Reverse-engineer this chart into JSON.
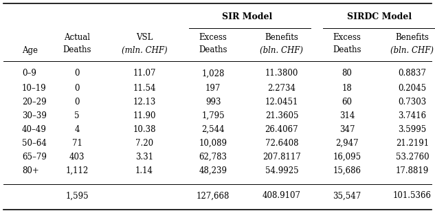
{
  "title_left": "SIR Model",
  "title_right": "SIRDC Model",
  "headers_row1": [
    "",
    "Actual",
    "VSL",
    "Excess",
    "Benefits",
    "Excess",
    "Benefits"
  ],
  "headers_row2": [
    "Age",
    "Deaths",
    "(mln. CHF)",
    "Deaths",
    "(bln. CHF)",
    "Deaths",
    "(bln. CHF)"
  ],
  "rows": [
    [
      "0–9",
      "0",
      "11.07",
      "1,028",
      "11.3800",
      "80",
      "0.8837"
    ],
    [
      "10–19",
      "0",
      "11.54",
      "197",
      "2.2734",
      "18",
      "0.2045"
    ],
    [
      "20–29",
      "0",
      "12.13",
      "993",
      "12.0451",
      "60",
      "0.7303"
    ],
    [
      "30–39",
      "5",
      "11.90",
      "1,795",
      "21.3605",
      "314",
      "3.7416"
    ],
    [
      "40–49",
      "4",
      "10.38",
      "2,544",
      "26.4067",
      "347",
      "3.5995"
    ],
    [
      "50–64",
      "71",
      "7.20",
      "10,089",
      "72.6408",
      "2,947",
      "21.2191"
    ],
    [
      "65–79",
      "403",
      "3.31",
      "62,783",
      "207.8117",
      "16,095",
      "53.2760"
    ],
    [
      "80+",
      "1,112",
      "1.14",
      "48,239",
      "54.9925",
      "15,686",
      "17.8819"
    ]
  ],
  "total_row": [
    "",
    "1,595",
    "",
    "127,668",
    "408.9107",
    "35,547",
    "101.5366"
  ],
  "background_color": "#ffffff",
  "text_color": "#000000",
  "font_size": 8.5
}
